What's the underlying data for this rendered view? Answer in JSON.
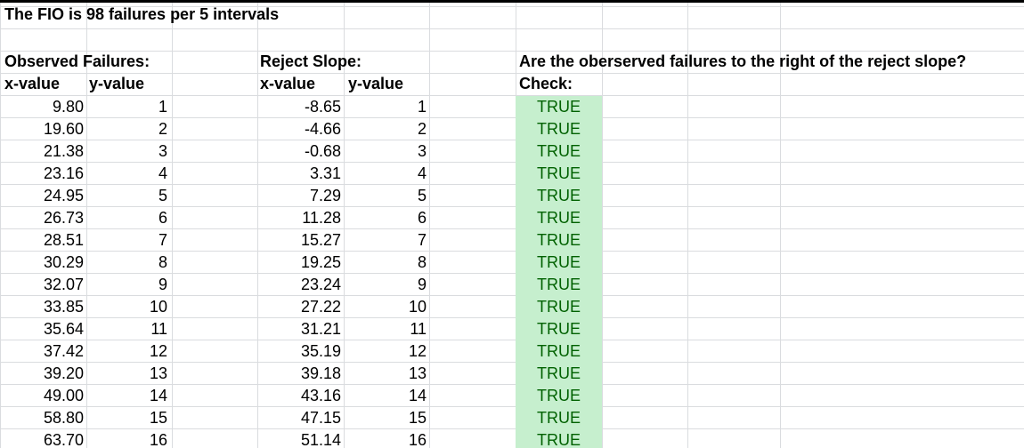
{
  "title": "The FIO is 98 failures per 5 intervals",
  "observed": {
    "header": "Observed Failures:",
    "x_label": "x-value",
    "y_label": "y-value",
    "rows": [
      {
        "x": "9.80",
        "y": "1"
      },
      {
        "x": "19.60",
        "y": "2"
      },
      {
        "x": "21.38",
        "y": "3"
      },
      {
        "x": "23.16",
        "y": "4"
      },
      {
        "x": "24.95",
        "y": "5"
      },
      {
        "x": "26.73",
        "y": "6"
      },
      {
        "x": "28.51",
        "y": "7"
      },
      {
        "x": "30.29",
        "y": "8"
      },
      {
        "x": "32.07",
        "y": "9"
      },
      {
        "x": "33.85",
        "y": "10"
      },
      {
        "x": "35.64",
        "y": "11"
      },
      {
        "x": "37.42",
        "y": "12"
      },
      {
        "x": "39.20",
        "y": "13"
      },
      {
        "x": "49.00",
        "y": "14"
      },
      {
        "x": "58.80",
        "y": "15"
      },
      {
        "x": "63.70",
        "y": "16"
      }
    ]
  },
  "reject": {
    "header": "Reject Slope:",
    "x_label": "x-value",
    "y_label": "y-value",
    "rows": [
      {
        "x": "-8.65",
        "y": "1"
      },
      {
        "x": "-4.66",
        "y": "2"
      },
      {
        "x": "-0.68",
        "y": "3"
      },
      {
        "x": "3.31",
        "y": "4"
      },
      {
        "x": "7.29",
        "y": "5"
      },
      {
        "x": "11.28",
        "y": "6"
      },
      {
        "x": "15.27",
        "y": "7"
      },
      {
        "x": "19.25",
        "y": "8"
      },
      {
        "x": "23.24",
        "y": "9"
      },
      {
        "x": "27.22",
        "y": "10"
      },
      {
        "x": "31.21",
        "y": "11"
      },
      {
        "x": "35.19",
        "y": "12"
      },
      {
        "x": "39.18",
        "y": "13"
      },
      {
        "x": "43.16",
        "y": "14"
      },
      {
        "x": "47.15",
        "y": "15"
      },
      {
        "x": "51.14",
        "y": "16"
      }
    ]
  },
  "check": {
    "question": "Are the oberserved failures to the right of the reject slope?",
    "label": "Check:",
    "values": [
      "TRUE",
      "TRUE",
      "TRUE",
      "TRUE",
      "TRUE",
      "TRUE",
      "TRUE",
      "TRUE",
      "TRUE",
      "TRUE",
      "TRUE",
      "TRUE",
      "TRUE",
      "TRUE",
      "TRUE",
      "TRUE"
    ]
  },
  "colors": {
    "true_fill": "#c6efce",
    "true_text": "#006100",
    "gridline": "#dadcdf"
  }
}
